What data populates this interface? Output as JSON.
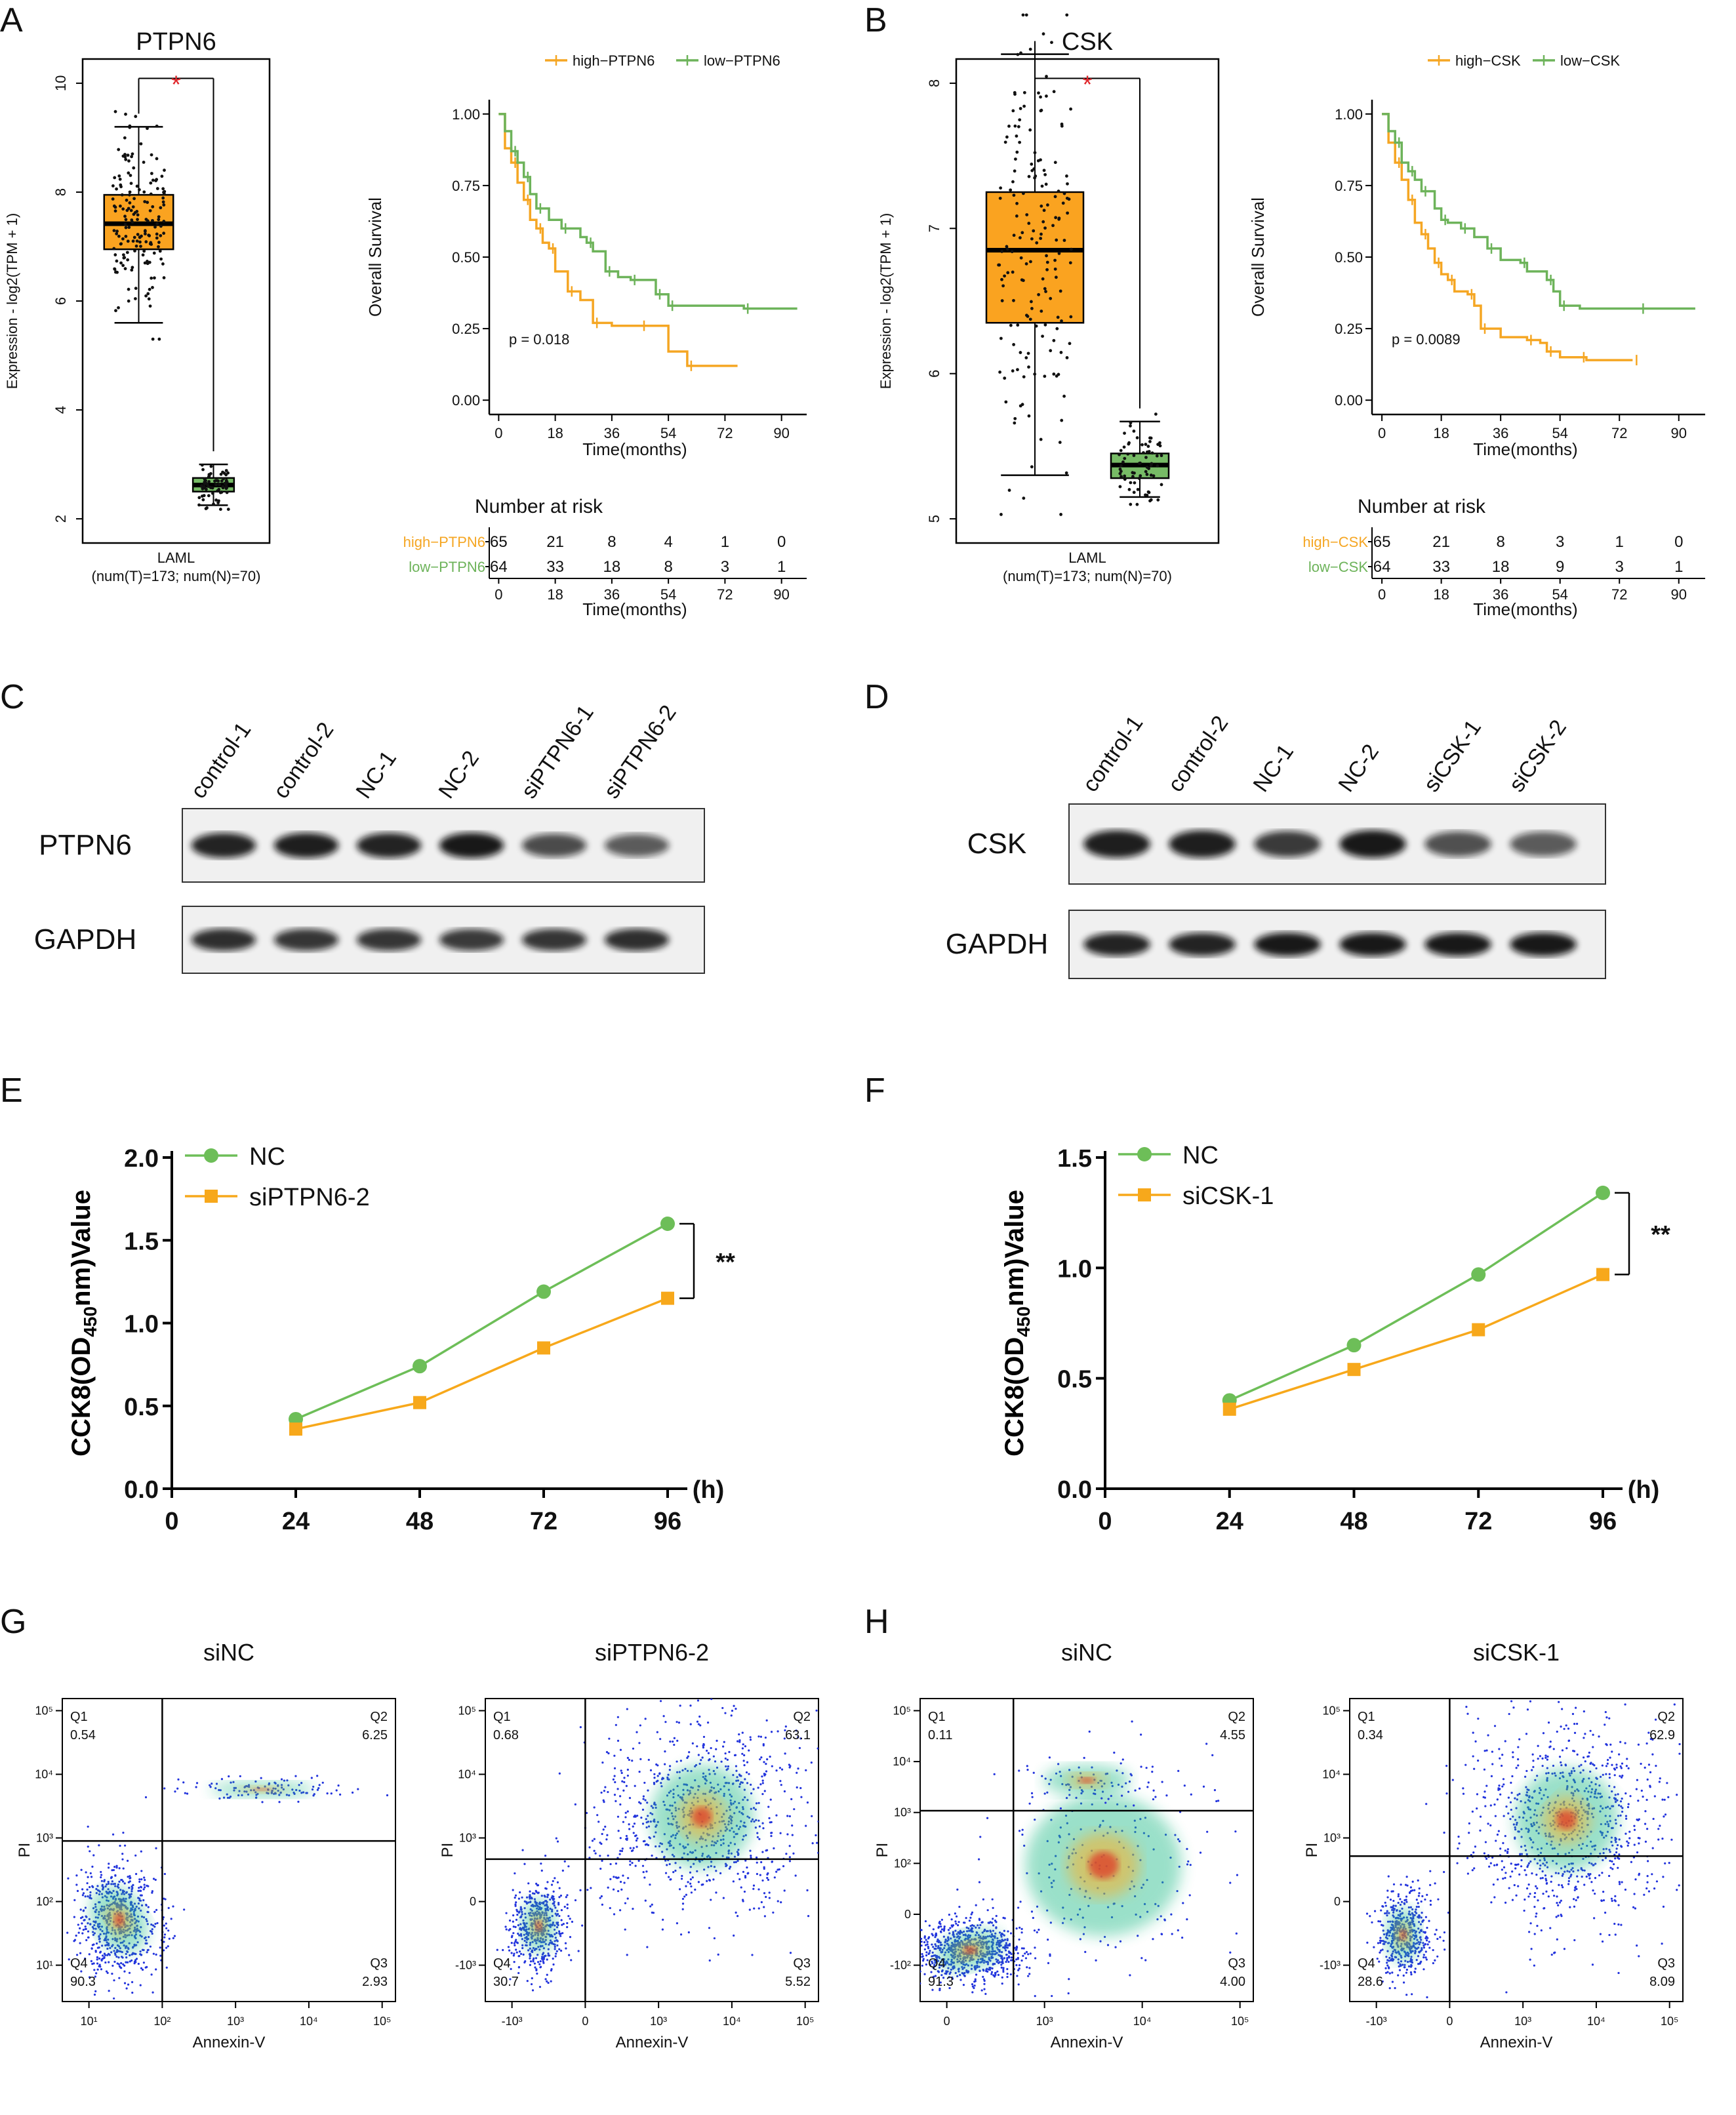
{
  "panel_letters": [
    "A",
    "B",
    "C",
    "D",
    "E",
    "F",
    "G",
    "H"
  ],
  "colors": {
    "high": "#F5A623",
    "low": "#6DB35A",
    "box_high": "#FAA320",
    "box_low": "#77BB66",
    "star": "#E0262B",
    "nc_line": "#6DBE58",
    "si_line": "#F7A81B"
  },
  "chart_data": [
    {
      "id": "A1",
      "type": "box",
      "title": "PTPN6",
      "ylabel": "Expression - log2(TPM + 1)",
      "ylim": [
        2,
        10
      ],
      "yticks": [
        2,
        4,
        6,
        8,
        10
      ],
      "xlabel": "LAML",
      "xsublabel": "(num(T)=173; num(N)=70)",
      "significance": "*",
      "boxes": [
        {
          "group": "Tumor",
          "whisker_low": 5.6,
          "q1": 6.95,
          "median": 7.42,
          "q3": 7.95,
          "whisker_high": 9.2,
          "n": 173
        },
        {
          "group": "Normal",
          "whisker_low": 2.25,
          "q1": 2.5,
          "median": 2.62,
          "q3": 2.75,
          "whisker_high": 3.0,
          "n": 70
        }
      ]
    },
    {
      "id": "A2",
      "type": "line",
      "subtype": "kaplan-meier",
      "ylabel": "Overall Survival",
      "xlabel": "Time(months)",
      "ylim": [
        0,
        1
      ],
      "yticks": [
        "0.00",
        "0.25",
        "0.50",
        "0.75",
        "1.00"
      ],
      "xticks": [
        0,
        18,
        36,
        54,
        72,
        90
      ],
      "legend": [
        "high−PTPN6",
        "low−PTPN6"
      ],
      "pvalue": "p = 0.018",
      "series": [
        {
          "name": "high−PTPN6",
          "x": [
            0,
            2,
            4,
            6,
            8,
            10,
            12,
            14,
            16,
            18,
            22,
            26,
            30,
            36,
            45,
            54,
            60,
            76
          ],
          "y": [
            1,
            0.88,
            0.83,
            0.76,
            0.7,
            0.63,
            0.6,
            0.55,
            0.53,
            0.45,
            0.38,
            0.35,
            0.27,
            0.26,
            0.26,
            0.17,
            0.12,
            0.12
          ]
        },
        {
          "name": "low−PTPN6",
          "x": [
            0,
            2,
            4,
            6,
            8,
            10,
            12,
            16,
            20,
            26,
            28,
            30,
            34,
            38,
            42,
            46,
            50,
            52,
            54,
            62,
            78,
            95
          ],
          "y": [
            1,
            0.94,
            0.87,
            0.83,
            0.78,
            0.72,
            0.67,
            0.63,
            0.6,
            0.57,
            0.55,
            0.52,
            0.45,
            0.43,
            0.42,
            0.42,
            0.37,
            0.37,
            0.33,
            0.33,
            0.32,
            0.32
          ]
        }
      ],
      "risk_table": {
        "title": "Number at risk",
        "rows": [
          {
            "label": "high−PTPN6",
            "values": [
              "65",
              "21",
              "8",
              "4",
              "1",
              "0"
            ]
          },
          {
            "label": "low−PTPN6",
            "values": [
              "64",
              "33",
              "18",
              "8",
              "3",
              "1"
            ]
          }
        ],
        "xticks": [
          0,
          18,
          36,
          54,
          72,
          90
        ],
        "xlabel": "Time(months)"
      }
    },
    {
      "id": "B1",
      "type": "box",
      "title": "CSK",
      "ylabel": "Expression - log2(TPM + 1)",
      "ylim": [
        5,
        8
      ],
      "yticks": [
        5,
        6,
        7,
        8
      ],
      "xlabel": "LAML",
      "xsublabel": "(num(T)=173; num(N)=70)",
      "significance": "*",
      "boxes": [
        {
          "group": "Tumor",
          "whisker_low": 5.3,
          "q1": 6.35,
          "median": 6.85,
          "q3": 7.25,
          "whisker_high": 8.2,
          "n": 173
        },
        {
          "group": "Normal",
          "whisker_low": 5.15,
          "q1": 5.28,
          "median": 5.37,
          "q3": 5.45,
          "whisker_high": 5.67,
          "n": 70
        }
      ]
    },
    {
      "id": "B2",
      "type": "line",
      "subtype": "kaplan-meier",
      "ylabel": "Overall Survival",
      "xlabel": "Time(months)",
      "ylim": [
        0,
        1
      ],
      "yticks": [
        "0.00",
        "0.25",
        "0.50",
        "0.75",
        "1.00"
      ],
      "xticks": [
        0,
        18,
        36,
        54,
        72,
        90
      ],
      "legend": [
        "high−CSK",
        "low−CSK"
      ],
      "pvalue": "p = 0.0089",
      "series": [
        {
          "name": "high−CSK",
          "x": [
            0,
            2,
            4,
            6,
            8,
            10,
            12,
            14,
            16,
            18,
            20,
            22,
            26,
            28,
            30,
            36,
            44,
            48,
            50,
            54,
            60,
            62,
            76
          ],
          "y": [
            1,
            0.9,
            0.83,
            0.77,
            0.7,
            0.62,
            0.58,
            0.53,
            0.48,
            0.44,
            0.42,
            0.38,
            0.37,
            0.33,
            0.25,
            0.22,
            0.21,
            0.2,
            0.17,
            0.15,
            0.15,
            0.14,
            0.14
          ]
        },
        {
          "name": "low−CSK",
          "x": [
            0,
            2,
            4,
            6,
            8,
            10,
            12,
            16,
            18,
            20,
            24,
            28,
            32,
            36,
            42,
            44,
            50,
            52,
            54,
            60,
            78,
            95
          ],
          "y": [
            1,
            0.94,
            0.9,
            0.83,
            0.8,
            0.77,
            0.73,
            0.67,
            0.63,
            0.62,
            0.6,
            0.57,
            0.53,
            0.49,
            0.48,
            0.45,
            0.42,
            0.38,
            0.33,
            0.32,
            0.32,
            0.32
          ]
        }
      ],
      "risk_table": {
        "title": "Number at risk",
        "rows": [
          {
            "label": "high−CSK",
            "values": [
              "65",
              "21",
              "8",
              "3",
              "1",
              "0"
            ]
          },
          {
            "label": "low−CSK",
            "values": [
              "64",
              "33",
              "18",
              "9",
              "3",
              "1"
            ]
          }
        ],
        "xticks": [
          0,
          18,
          36,
          54,
          72,
          90
        ],
        "xlabel": "Time(months)"
      }
    },
    {
      "id": "E",
      "type": "line",
      "ylabel": "CCK8(OD450nm)Value",
      "ylabel_parts": [
        "CCK8(OD",
        "450",
        "nm)Value"
      ],
      "xunit": "(h)",
      "ylim": [
        0,
        2
      ],
      "yticks": [
        "0.0",
        "0.5",
        "1.0",
        "1.5",
        "2.0"
      ],
      "xticks": [
        0,
        24,
        48,
        72,
        96
      ],
      "significance": "**",
      "series": [
        {
          "name": "NC",
          "x": [
            24,
            48,
            72,
            96
          ],
          "values": [
            0.42,
            0.74,
            1.19,
            1.6
          ]
        },
        {
          "name": "siPTPN6-2",
          "x": [
            24,
            48,
            72,
            96
          ],
          "values": [
            0.36,
            0.52,
            0.85,
            1.15
          ]
        }
      ]
    },
    {
      "id": "F",
      "type": "line",
      "ylabel": "CCK8(OD450nm)Value",
      "ylabel_parts": [
        "CCK8(OD",
        "450",
        "nm)Value"
      ],
      "xunit": "(h)",
      "ylim": [
        0,
        1.5
      ],
      "yticks": [
        "0.0",
        "0.5",
        "1.0",
        "1.5"
      ],
      "xticks": [
        0,
        24,
        48,
        72,
        96
      ],
      "significance": "**",
      "series": [
        {
          "name": "NC",
          "x": [
            24,
            48,
            72,
            96
          ],
          "values": [
            0.4,
            0.65,
            0.97,
            1.34
          ]
        },
        {
          "name": "siCSK-1",
          "x": [
            24,
            48,
            72,
            96
          ],
          "values": [
            0.36,
            0.54,
            0.72,
            0.97
          ]
        }
      ]
    },
    {
      "id": "G1",
      "type": "scatter",
      "subtype": "flow-cytometry",
      "title": "siNC",
      "xlabel": "Annexin-V",
      "ylabel": "PI",
      "quadrants": {
        "Q1": "0.54",
        "Q2": "6.25",
        "Q3": "2.93",
        "Q4": "90.3"
      },
      "xticks": [
        "10¹",
        "10²",
        "10³",
        "10⁴",
        "10⁵"
      ],
      "yticks": [
        "10¹",
        "10²",
        "10³",
        "10⁴",
        "10⁵"
      ]
    },
    {
      "id": "G2",
      "type": "scatter",
      "subtype": "flow-cytometry",
      "title": "siPTPN6-2",
      "xlabel": "Annexin-V",
      "ylabel": "PI",
      "quadrants": {
        "Q1": "0.68",
        "Q2": "63.1",
        "Q3": "5.52",
        "Q4": "30.7"
      },
      "xticks": [
        "-10³",
        "0",
        "10³",
        "10⁴",
        "10⁵"
      ],
      "yticks": [
        "-10³",
        "0",
        "10³",
        "10⁴",
        "10⁵"
      ]
    },
    {
      "id": "H1",
      "type": "scatter",
      "subtype": "flow-cytometry",
      "title": "siNC",
      "xlabel": "Annexin-V",
      "ylabel": "PI",
      "quadrants": {
        "Q1": "0.11",
        "Q2": "4.55",
        "Q3": "4.00",
        "Q4": "91.3"
      },
      "xticks": [
        "0",
        "10³",
        "10⁴",
        "10⁵"
      ],
      "yticks": [
        "-10²",
        "0",
        "10²",
        "10³",
        "10⁴",
        "10⁵"
      ]
    },
    {
      "id": "H2",
      "type": "scatter",
      "subtype": "flow-cytometry",
      "title": "siCSK-1",
      "xlabel": "Annexin-V",
      "ylabel": "PI",
      "quadrants": {
        "Q1": "0.34",
        "Q2": "62.9",
        "Q3": "8.09",
        "Q4": "28.6"
      },
      "xticks": [
        "-10³",
        "0",
        "10³",
        "10⁴",
        "10⁵"
      ],
      "yticks": [
        "-10³",
        "0",
        "10³",
        "10⁴",
        "10⁵"
      ]
    }
  ],
  "western_blots": [
    {
      "id": "C",
      "lanes": [
        "control-1",
        "control-2",
        "NC-1",
        "NC-2",
        "siPTPN6-1",
        "siPTPN6-2"
      ],
      "rows": [
        {
          "label": "PTPN6",
          "intensity": [
            0.9,
            0.92,
            0.9,
            0.95,
            0.72,
            0.65
          ]
        },
        {
          "label": "GAPDH",
          "intensity": [
            0.85,
            0.82,
            0.82,
            0.8,
            0.82,
            0.85
          ]
        }
      ]
    },
    {
      "id": "D",
      "lanes": [
        "control-1",
        "control-2",
        "NC-1",
        "NC-2",
        "siCSK-1",
        "siCSK-2"
      ],
      "rows": [
        {
          "label": "CSK",
          "intensity": [
            0.92,
            0.92,
            0.8,
            0.95,
            0.7,
            0.65
          ]
        },
        {
          "label": "GAPDH",
          "intensity": [
            0.9,
            0.9,
            0.95,
            0.95,
            0.95,
            0.95
          ]
        }
      ]
    }
  ]
}
